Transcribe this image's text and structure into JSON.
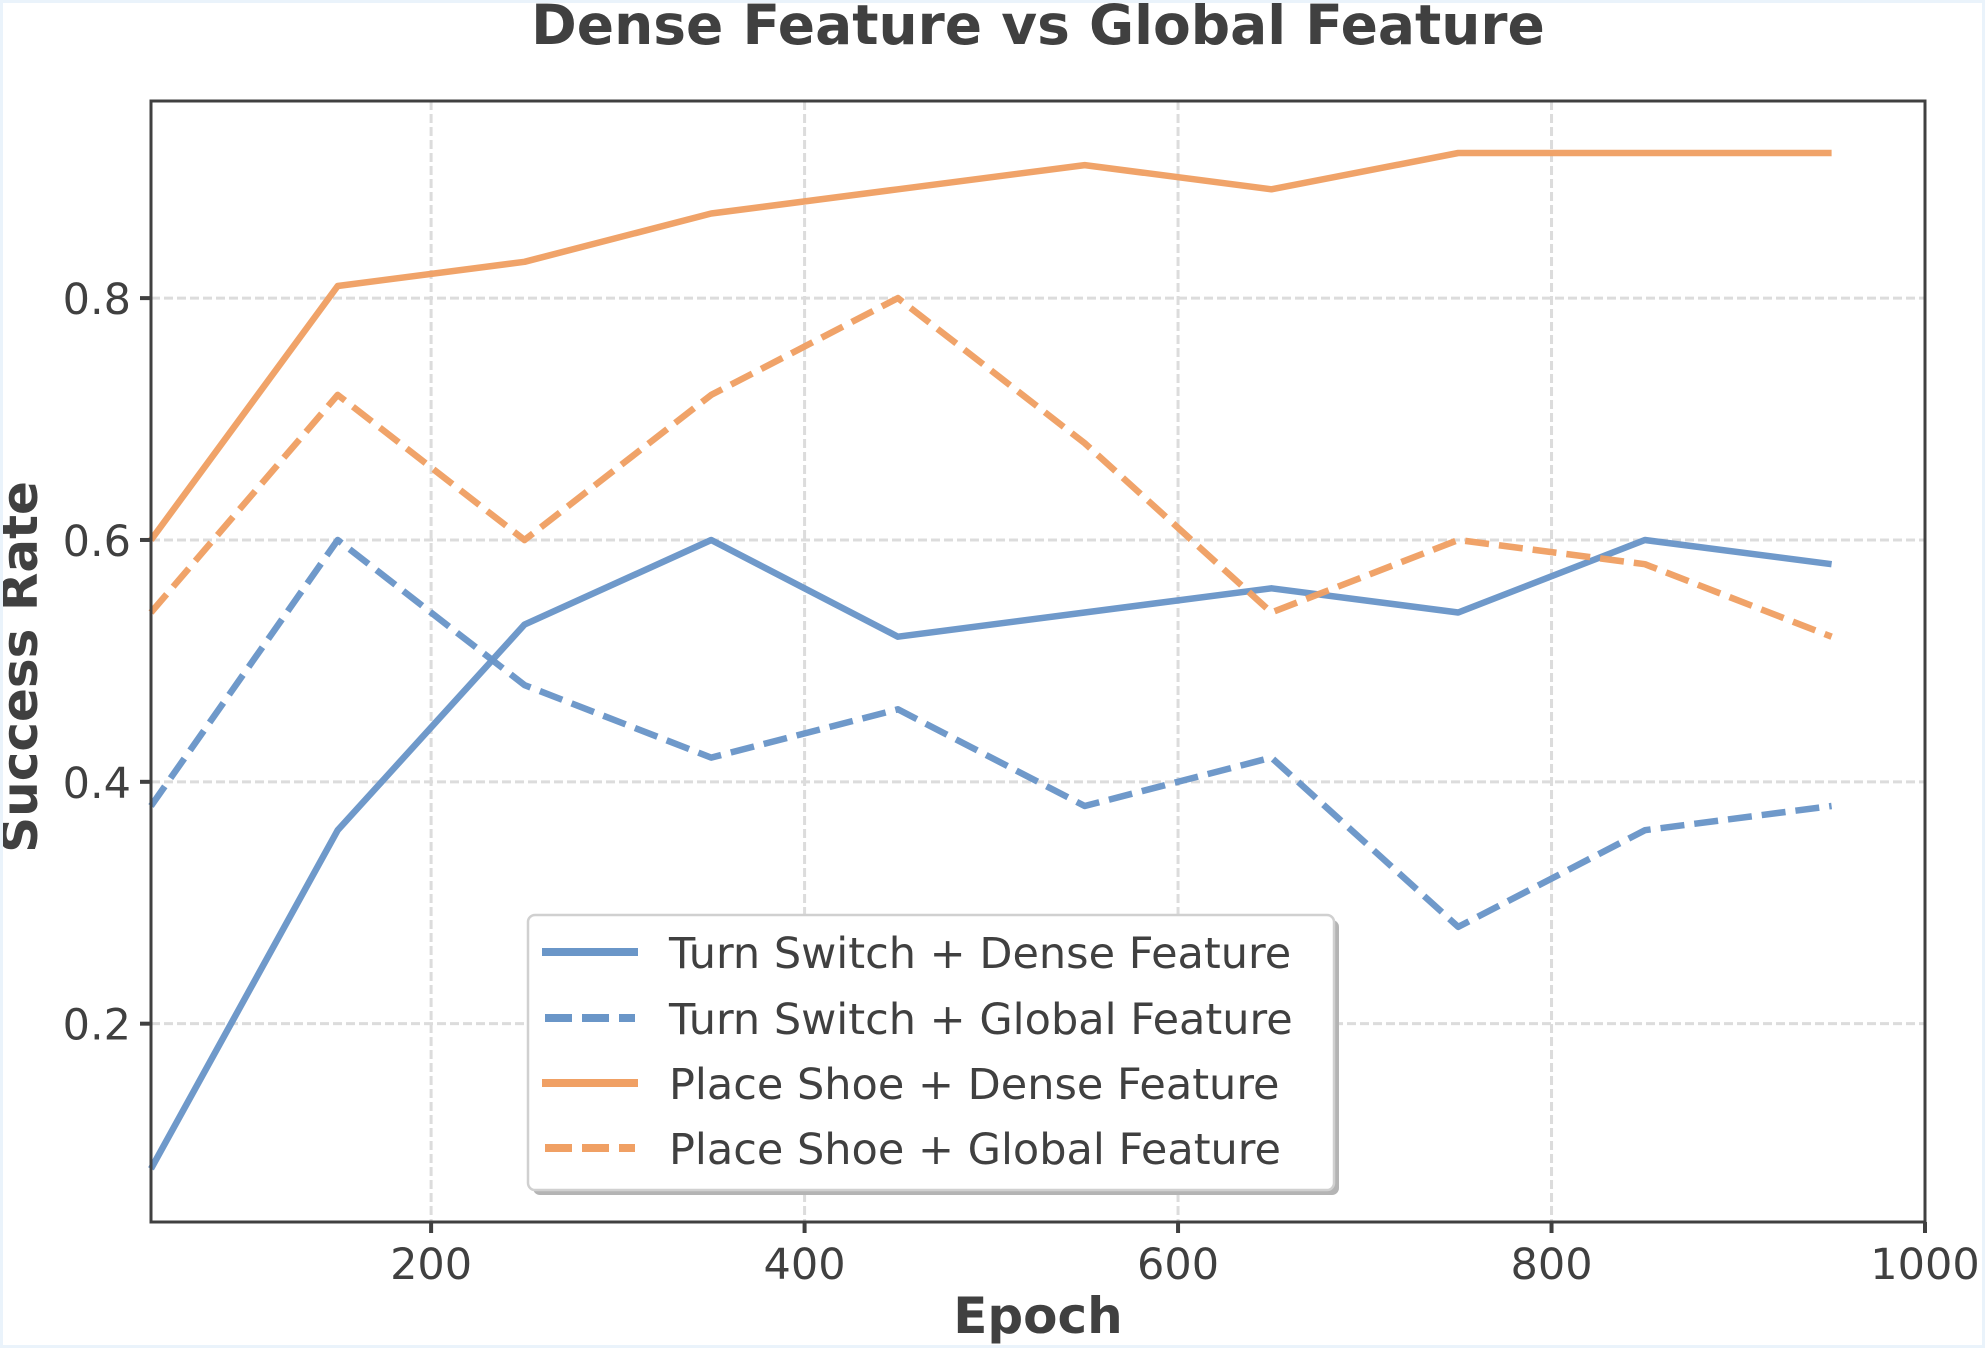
{
  "chart_data": {
    "type": "line",
    "title": "Dense Feature vs Global Feature",
    "xlabel": "Epoch",
    "ylabel": "Success Rate",
    "x": [
      50,
      150,
      250,
      350,
      450,
      550,
      650,
      750,
      850,
      950
    ],
    "xlim": [
      50,
      1000
    ],
    "ylim": [
      0.036,
      0.963
    ],
    "xticks": [
      200,
      400,
      600,
      800,
      1000
    ],
    "xtick_labels": [
      "200",
      "400",
      "600",
      "800",
      "1000"
    ],
    "yticks": [
      0.2,
      0.4,
      0.6,
      0.8
    ],
    "ytick_labels": [
      "0.2",
      "0.4",
      "0.6",
      "0.8"
    ],
    "grid": true,
    "legend_position": "lower center",
    "series": [
      {
        "name": "Turn Switch + Dense Feature",
        "color": "#6a96c8",
        "linestyle": "solid",
        "values": [
          0.08,
          0.36,
          0.53,
          0.6,
          0.52,
          0.54,
          0.56,
          0.54,
          0.6,
          0.58
        ]
      },
      {
        "name": "Turn Switch + Global Feature",
        "color": "#6a96c8",
        "linestyle": "dashed",
        "values": [
          0.38,
          0.6,
          0.48,
          0.42,
          0.46,
          0.38,
          0.42,
          0.28,
          0.36,
          0.38
        ]
      },
      {
        "name": "Place Shoe + Dense Feature",
        "color": "#f0a064",
        "linestyle": "solid",
        "values": [
          0.6,
          0.81,
          0.83,
          0.87,
          0.89,
          0.91,
          0.89,
          0.92,
          0.92,
          0.92
        ]
      },
      {
        "name": "Place Shoe + Global Feature",
        "color": "#f0a064",
        "linestyle": "dashed",
        "values": [
          0.54,
          0.72,
          0.6,
          0.72,
          0.8,
          0.68,
          0.54,
          0.6,
          0.58,
          0.52
        ]
      }
    ]
  }
}
